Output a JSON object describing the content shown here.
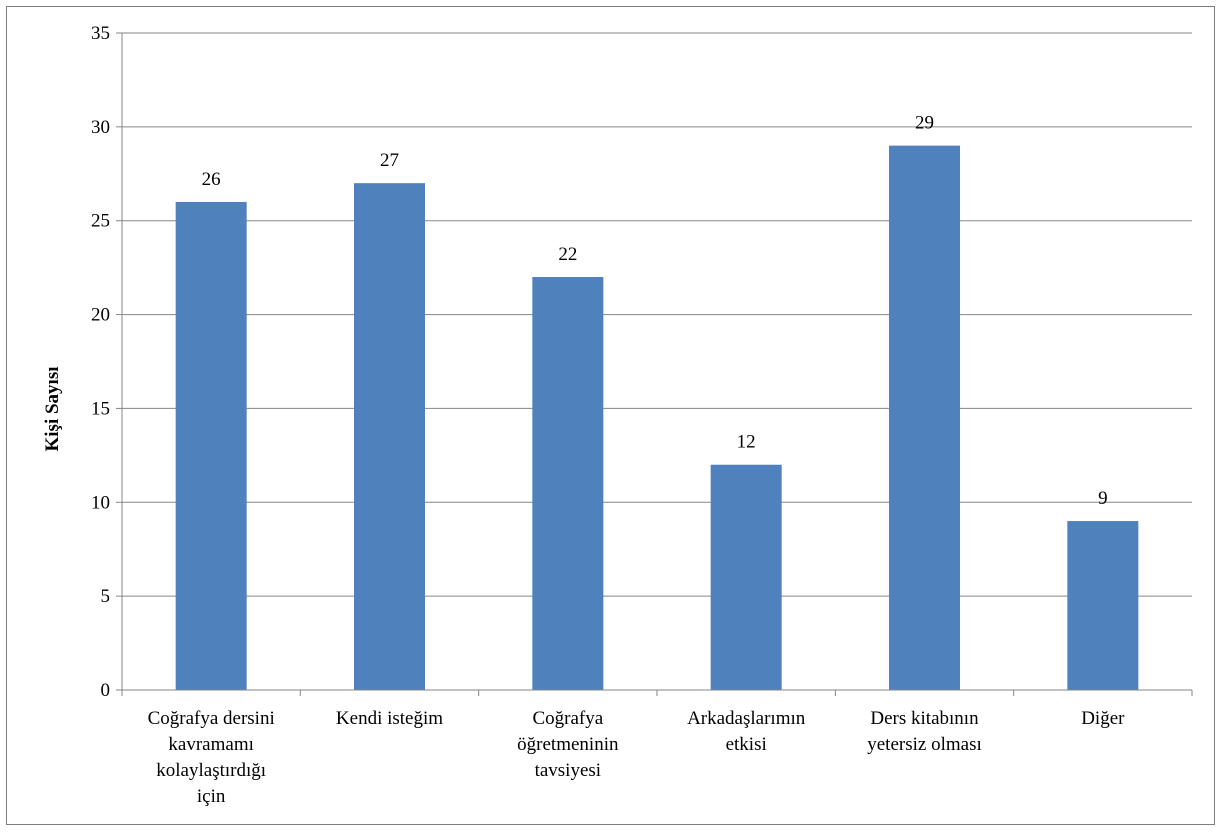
{
  "chart_data": {
    "type": "bar",
    "title": "",
    "xlabel": "",
    "ylabel": "Kişi Sayısı",
    "ylim": [
      0,
      35
    ],
    "y_ticks": [
      0,
      5,
      10,
      15,
      20,
      25,
      30,
      35
    ],
    "grid": true,
    "legend": "none",
    "bar_color": "#4f81bd",
    "categories": [
      [
        "Coğrafya dersini",
        "kavramamı",
        "kolaylaştırdığı",
        "için"
      ],
      [
        "Kendi isteğim"
      ],
      [
        "Coğrafya",
        "öğretmeninin",
        "tavsiyesi"
      ],
      [
        "Arkadaşlarımın",
        "etkisi"
      ],
      [
        "Ders kitabının",
        "yetersiz olması"
      ],
      [
        "Diğer"
      ]
    ],
    "values": [
      26,
      27,
      22,
      12,
      29,
      9
    ]
  }
}
